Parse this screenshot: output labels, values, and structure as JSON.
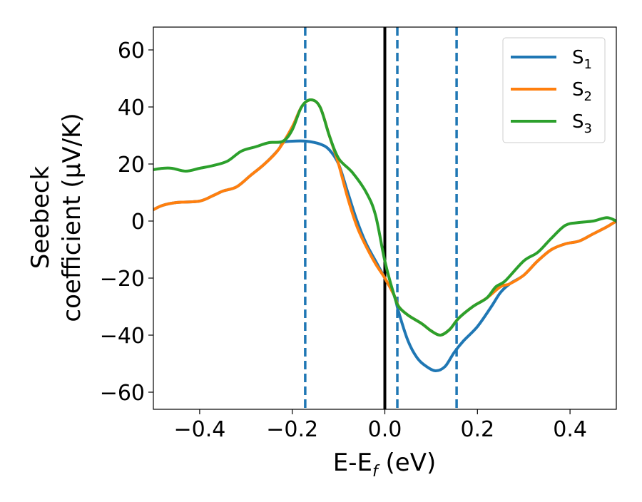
{
  "chart_data": {
    "type": "line",
    "title": "",
    "xlabel": {
      "main": "E-E",
      "sub": "f",
      "rest": " (eV)"
    },
    "ylabel": {
      "line1": "Seebeck",
      "line2": "coefficient  (μV/K)"
    },
    "xlim": [
      -0.5,
      0.5
    ],
    "ylim": [
      -66,
      68
    ],
    "xticks": [
      {
        "value": -0.4,
        "label": "−0.4"
      },
      {
        "value": -0.2,
        "label": "−0.2"
      },
      {
        "value": 0.0,
        "label": "0.0"
      },
      {
        "value": 0.2,
        "label": "0.2"
      },
      {
        "value": 0.4,
        "label": "0.4"
      }
    ],
    "yticks": [
      {
        "value": -60,
        "label": "−60"
      },
      {
        "value": -40,
        "label": "−40"
      },
      {
        "value": -20,
        "label": "−20"
      },
      {
        "value": 0,
        "label": "0"
      },
      {
        "value": 20,
        "label": "20"
      },
      {
        "value": 40,
        "label": "40"
      },
      {
        "value": 60,
        "label": "60"
      }
    ],
    "grid": false,
    "legend_position": "top-right",
    "vlines": [
      {
        "x": -0.172,
        "style": "dashed",
        "color": "#1f77b4"
      },
      {
        "x": 0.0,
        "style": "solid",
        "color": "#000000"
      },
      {
        "x": 0.027,
        "style": "dashed",
        "color": "#1f77b4"
      },
      {
        "x": 0.155,
        "style": "dashed",
        "color": "#1f77b4"
      }
    ],
    "series": [
      {
        "name": "S",
        "sub": "1",
        "color": "#1f77b4",
        "points": [
          [
            -0.5,
            4
          ],
          [
            -0.48,
            5.5
          ],
          [
            -0.45,
            6.5
          ],
          [
            -0.4,
            7
          ],
          [
            -0.37,
            9
          ],
          [
            -0.35,
            10.5
          ],
          [
            -0.32,
            12
          ],
          [
            -0.29,
            16
          ],
          [
            -0.26,
            20
          ],
          [
            -0.23,
            25
          ],
          [
            -0.22,
            27.5
          ],
          [
            -0.2,
            28
          ],
          [
            -0.17,
            28
          ],
          [
            -0.14,
            27
          ],
          [
            -0.12,
            25
          ],
          [
            -0.1,
            20
          ],
          [
            -0.08,
            10
          ],
          [
            -0.06,
            0
          ],
          [
            -0.04,
            -8
          ],
          [
            -0.02,
            -14
          ],
          [
            0.0,
            -20
          ],
          [
            0.02,
            -26
          ],
          [
            0.03,
            -32
          ],
          [
            0.05,
            -42
          ],
          [
            0.07,
            -48
          ],
          [
            0.09,
            -51
          ],
          [
            0.11,
            -52.5
          ],
          [
            0.13,
            -51
          ],
          [
            0.15,
            -46
          ],
          [
            0.17,
            -42
          ],
          [
            0.2,
            -37
          ],
          [
            0.23,
            -30
          ],
          [
            0.25,
            -25
          ],
          [
            0.27,
            -22
          ],
          [
            0.3,
            -19
          ],
          [
            0.33,
            -14
          ],
          [
            0.36,
            -10
          ],
          [
            0.39,
            -8
          ],
          [
            0.42,
            -7
          ],
          [
            0.45,
            -4.5
          ],
          [
            0.48,
            -2
          ],
          [
            0.5,
            0
          ]
        ]
      },
      {
        "name": "S",
        "sub": "2",
        "color": "#ff7f0e",
        "points": [
          [
            -0.5,
            4
          ],
          [
            -0.48,
            5.5
          ],
          [
            -0.45,
            6.5
          ],
          [
            -0.4,
            7
          ],
          [
            -0.37,
            9
          ],
          [
            -0.35,
            10.5
          ],
          [
            -0.32,
            12
          ],
          [
            -0.29,
            16
          ],
          [
            -0.26,
            20
          ],
          [
            -0.23,
            25
          ],
          [
            -0.2,
            33
          ],
          [
            -0.18,
            40
          ],
          [
            -0.16,
            42.5
          ],
          [
            -0.14,
            40
          ],
          [
            -0.12,
            30
          ],
          [
            -0.1,
            20
          ],
          [
            -0.08,
            8
          ],
          [
            -0.06,
            -2
          ],
          [
            -0.04,
            -9
          ],
          [
            -0.02,
            -15
          ],
          [
            0.0,
            -20
          ],
          [
            0.02,
            -26
          ],
          [
            0.03,
            -30
          ],
          [
            0.05,
            -33
          ],
          [
            0.08,
            -36
          ],
          [
            0.1,
            -38.5
          ],
          [
            0.12,
            -40
          ],
          [
            0.14,
            -38
          ],
          [
            0.16,
            -34
          ],
          [
            0.19,
            -30
          ],
          [
            0.22,
            -27
          ],
          [
            0.25,
            -23
          ],
          [
            0.27,
            -22
          ],
          [
            0.3,
            -19
          ],
          [
            0.33,
            -14
          ],
          [
            0.36,
            -10
          ],
          [
            0.39,
            -8
          ],
          [
            0.42,
            -7
          ],
          [
            0.45,
            -4.5
          ],
          [
            0.48,
            -2
          ],
          [
            0.5,
            0
          ]
        ]
      },
      {
        "name": "S",
        "sub": "3",
        "color": "#2ca02c",
        "points": [
          [
            -0.5,
            18
          ],
          [
            -0.48,
            18.5
          ],
          [
            -0.46,
            18.5
          ],
          [
            -0.43,
            17.5
          ],
          [
            -0.4,
            18.5
          ],
          [
            -0.37,
            19.5
          ],
          [
            -0.34,
            21
          ],
          [
            -0.31,
            24.5
          ],
          [
            -0.28,
            26
          ],
          [
            -0.25,
            27.5
          ],
          [
            -0.22,
            28
          ],
          [
            -0.2,
            32
          ],
          [
            -0.18,
            40
          ],
          [
            -0.16,
            42.5
          ],
          [
            -0.14,
            40
          ],
          [
            -0.12,
            30
          ],
          [
            -0.1,
            22
          ],
          [
            -0.07,
            17
          ],
          [
            -0.04,
            10
          ],
          [
            -0.02,
            2
          ],
          [
            0.0,
            -14
          ],
          [
            0.02,
            -26
          ],
          [
            0.03,
            -30
          ],
          [
            0.05,
            -33
          ],
          [
            0.08,
            -36
          ],
          [
            0.1,
            -38.5
          ],
          [
            0.12,
            -40
          ],
          [
            0.14,
            -38
          ],
          [
            0.16,
            -34
          ],
          [
            0.19,
            -30
          ],
          [
            0.22,
            -27
          ],
          [
            0.24,
            -23
          ],
          [
            0.26,
            -21
          ],
          [
            0.3,
            -14
          ],
          [
            0.33,
            -11
          ],
          [
            0.36,
            -6
          ],
          [
            0.39,
            -1.5
          ],
          [
            0.42,
            -0.5
          ],
          [
            0.45,
            0
          ],
          [
            0.48,
            1.2
          ],
          [
            0.5,
            0
          ]
        ]
      }
    ]
  }
}
